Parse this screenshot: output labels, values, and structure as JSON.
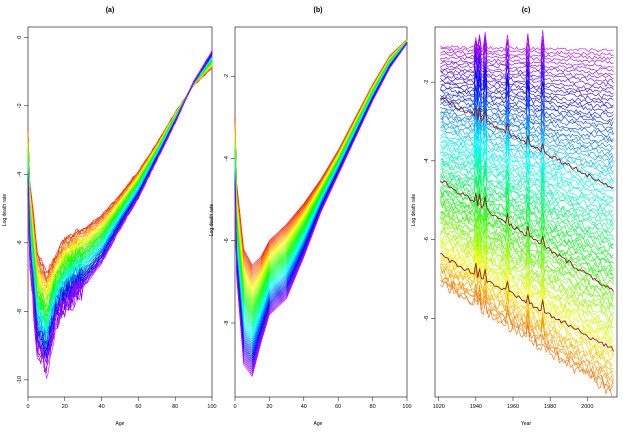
{
  "chart_data": [
    {
      "panel": "a",
      "type": "line",
      "title": "(a)",
      "xlabel": "Age",
      "ylabel": "Log death rate",
      "xlim": [
        0,
        100
      ],
      "ylim": [
        -10.5,
        0.3
      ],
      "xticks": [
        0,
        20,
        40,
        60,
        80,
        100
      ],
      "yticks": [
        -10,
        -8,
        -6,
        -4,
        -2,
        0
      ],
      "series_count": 60,
      "color_scale": "rainbow: red (earliest year) to violet (latest year)",
      "curve_shape": {
        "x": [
          0,
          1,
          5,
          10,
          15,
          20,
          30,
          40,
          50,
          60,
          70,
          80,
          90,
          100
        ],
        "y_first_series": [
          -2.7,
          -4.2,
          -6.3,
          -6.9,
          -6.4,
          -5.9,
          -5.6,
          -5.2,
          -4.6,
          -3.9,
          -3.1,
          -2.2,
          -1.4,
          -0.9
        ],
        "y_last_series": [
          -4.6,
          -6.5,
          -9.2,
          -9.7,
          -8.3,
          -7.9,
          -7.3,
          -6.6,
          -5.6,
          -4.7,
          -3.6,
          -2.5,
          -1.3,
          -0.4
        ]
      }
    },
    {
      "panel": "b",
      "type": "line",
      "title": "(b)",
      "xlabel": "Age",
      "ylabel": "Log death rate",
      "xlim": [
        0,
        100
      ],
      "ylim": [
        -9.8,
        -0.8
      ],
      "xticks": [
        0,
        20,
        40,
        60,
        80,
        100
      ],
      "yticks": [
        -8,
        -6,
        -4,
        -2
      ],
      "series_count": 60,
      "color_scale": "rainbow: red (earliest year) to violet (latest year)",
      "curve_shape": {
        "x": [
          0,
          1,
          5,
          10,
          15,
          20,
          30,
          40,
          50,
          60,
          70,
          80,
          90,
          100
        ],
        "y_first_series": [
          -3.0,
          -4.6,
          -6.2,
          -6.6,
          -6.4,
          -6.0,
          -5.6,
          -5.1,
          -4.5,
          -3.8,
          -3.0,
          -2.2,
          -1.5,
          -1.1
        ],
        "y_last_series": [
          -4.9,
          -6.9,
          -9.0,
          -9.3,
          -8.5,
          -7.8,
          -7.4,
          -6.4,
          -5.3,
          -4.4,
          -3.5,
          -2.6,
          -1.8,
          -1.2
        ]
      }
    },
    {
      "panel": "c",
      "type": "line",
      "title": "(c)",
      "xlabel": "Year",
      "ylabel": "Log death rate",
      "xlim": [
        1918,
        2016
      ],
      "ylim": [
        -10.0,
        -0.6
      ],
      "xticks": [
        1920,
        1940,
        1960,
        1980,
        2000
      ],
      "yticks": [
        -8,
        -6,
        -4,
        -2
      ],
      "series_count": 90,
      "color_scale": "rainbow by age: orange/red (young ages, bottom) to violet (oldest ages, top)",
      "year_range": [
        1921,
        2014
      ],
      "level_top_series_start": -1.1,
      "level_top_series_end": -1.2,
      "level_bottom_series_start": -7.1,
      "level_bottom_series_end": -9.9,
      "highlighted_series_color": "#8b1a1a",
      "highlighted_series": [
        {
          "start": -2.4,
          "end": -4.7
        },
        {
          "start": -4.5,
          "end": -7.3
        },
        {
          "start": -6.4,
          "end": -8.8
        }
      ],
      "spike_years": [
        1940,
        1942,
        1945,
        1957,
        1968,
        1976
      ]
    }
  ]
}
